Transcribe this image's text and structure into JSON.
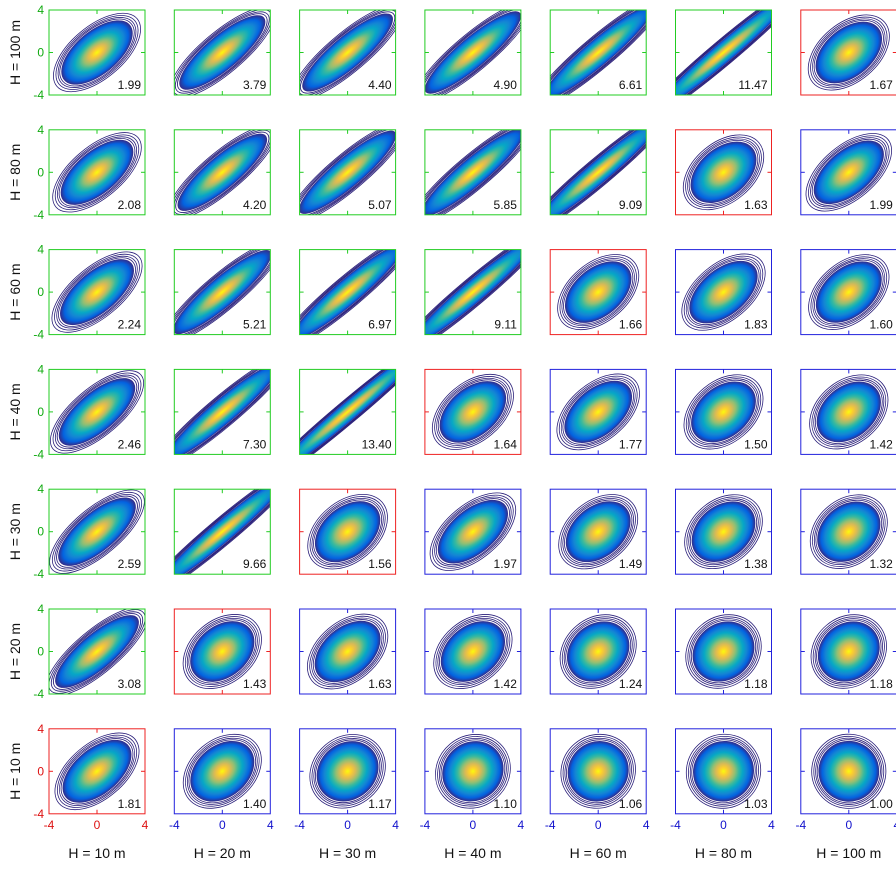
{
  "chart_data": {
    "type": "heatmap",
    "row_labels": [
      "H = 100 m",
      "H = 80 m",
      "H = 60 m",
      "H = 40 m",
      "H = 30 m",
      "H = 20 m",
      "H = 10 m"
    ],
    "col_labels": [
      "H = 10 m",
      "H = 20 m",
      "H = 30 m",
      "H = 40 m",
      "H = 60 m",
      "H = 80 m",
      "H = 100 m"
    ],
    "ticks": [
      -4,
      0,
      4
    ],
    "xlim": [
      -4,
      4
    ],
    "ylim": [
      -4,
      4
    ],
    "values": [
      [
        "1.99",
        "3.79",
        "4.40",
        "4.90",
        "6.61",
        "11.47",
        "1.67"
      ],
      [
        "2.08",
        "4.20",
        "5.07",
        "5.85",
        "9.09",
        "1.63",
        "1.99"
      ],
      [
        "2.24",
        "5.21",
        "6.97",
        "9.11",
        "1.66",
        "1.83",
        "1.60"
      ],
      [
        "2.46",
        "7.30",
        "13.40",
        "1.64",
        "1.77",
        "1.50",
        "1.42"
      ],
      [
        "2.59",
        "9.66",
        "1.56",
        "1.97",
        "1.49",
        "1.38",
        "1.32"
      ],
      [
        "3.08",
        "1.43",
        "1.63",
        "1.42",
        "1.24",
        "1.18",
        "1.18"
      ],
      [
        "1.81",
        "1.40",
        "1.17",
        "1.10",
        "1.06",
        "1.03",
        "1.00"
      ]
    ],
    "frame_type": [
      [
        "g",
        "g",
        "g",
        "g",
        "g",
        "g",
        "r"
      ],
      [
        "g",
        "g",
        "g",
        "g",
        "g",
        "r",
        "b"
      ],
      [
        "g",
        "g",
        "g",
        "g",
        "r",
        "b",
        "b"
      ],
      [
        "g",
        "g",
        "g",
        "r",
        "b",
        "b",
        "b"
      ],
      [
        "g",
        "g",
        "r",
        "b",
        "b",
        "b",
        "b"
      ],
      [
        "g",
        "r",
        "b",
        "b",
        "b",
        "b",
        "b"
      ],
      [
        "r",
        "b",
        "b",
        "b",
        "b",
        "b",
        "b"
      ]
    ],
    "ellipse_elongation": [
      [
        2.0,
        3.2,
        3.6,
        4.1,
        5.5,
        9.0,
        1.6
      ],
      [
        2.1,
        3.5,
        4.2,
        4.8,
        7.5,
        1.55,
        1.9
      ],
      [
        2.2,
        4.3,
        5.8,
        7.5,
        1.6,
        1.75,
        1.55
      ],
      [
        2.4,
        6.0,
        11.0,
        1.6,
        1.7,
        1.45,
        1.4
      ],
      [
        2.5,
        8.0,
        1.5,
        1.9,
        1.45,
        1.35,
        1.3
      ],
      [
        3.0,
        1.4,
        1.55,
        1.4,
        1.22,
        1.16,
        1.16
      ],
      [
        1.8,
        1.38,
        1.16,
        1.09,
        1.05,
        1.03,
        1.0
      ]
    ],
    "colors": {
      "green_frame": "#22cc22",
      "red_frame": "#ee2222",
      "blue_frame": "#2222dd",
      "colormap": [
        "#352a87",
        "#0363e1",
        "#1485d4",
        "#06a7c6",
        "#38b99e",
        "#92bf73",
        "#d9ba56",
        "#fcce2e",
        "#f9fb0e"
      ],
      "contour_line": "#2a1f7a",
      "tick_red": "#dd1111",
      "tick_blue": "#1111cc",
      "tick_green": "#11aa11"
    }
  }
}
